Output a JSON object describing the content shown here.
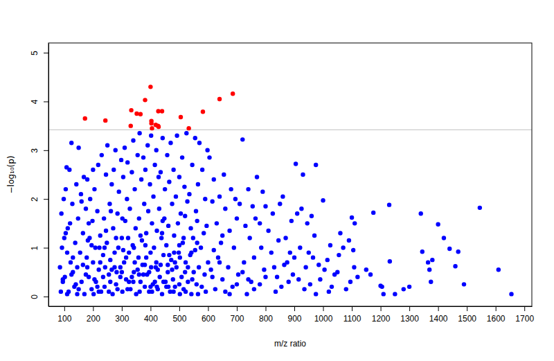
{
  "chart_data": {
    "type": "scatter",
    "x_label": "m/z ratio",
    "y_label": "−log₁₀(p)",
    "xlim": [
      45,
      1726
    ],
    "ylim": [
      -0.2,
      5.2
    ],
    "xticks": [
      100,
      200,
      300,
      400,
      500,
      600,
      700,
      800,
      900,
      1000,
      1100,
      1200,
      1300,
      1400,
      1500,
      1600,
      1700
    ],
    "yticks": [
      0,
      1,
      2,
      3,
      4,
      5
    ],
    "hline": 3.42,
    "series": [
      {
        "color": "#0000ff",
        "marker": "circle",
        "x": [
          85,
          90,
          95,
          100,
          105,
          110,
          115,
          120,
          125,
          130,
          88,
          92,
          98,
          102,
          108,
          112,
          118,
          122,
          128,
          135,
          138,
          142,
          145,
          148,
          150,
          155,
          158,
          160,
          165,
          168,
          170,
          175,
          178,
          180,
          185,
          188,
          190,
          195,
          198,
          200,
          205,
          208,
          210,
          215,
          218,
          220,
          225,
          228,
          230,
          235,
          238,
          240,
          245,
          248,
          250,
          255,
          258,
          260,
          265,
          268,
          270,
          272,
          275,
          278,
          280,
          285,
          288,
          290,
          295,
          298,
          300,
          302,
          305,
          308,
          310,
          312,
          315,
          318,
          320,
          325,
          328,
          330,
          335,
          338,
          340,
          342,
          345,
          348,
          350,
          355,
          358,
          360,
          362,
          365,
          368,
          370,
          372,
          375,
          378,
          380,
          382,
          385,
          388,
          390,
          392,
          395,
          398,
          400,
          402,
          405,
          408,
          410,
          412,
          415,
          418,
          420,
          422,
          425,
          428,
          430,
          432,
          435,
          438,
          440,
          442,
          445,
          448,
          450,
          452,
          455,
          458,
          460,
          462,
          465,
          468,
          470,
          472,
          475,
          478,
          480,
          482,
          485,
          488,
          490,
          492,
          495,
          498,
          500,
          502,
          505,
          508,
          510,
          512,
          515,
          518,
          520,
          522,
          525,
          528,
          530,
          535,
          538,
          540,
          542,
          545,
          548,
          550,
          555,
          558,
          560,
          562,
          565,
          568,
          570,
          575,
          578,
          580,
          585,
          588,
          590,
          592,
          595,
          598,
          600,
          565,
          555,
          545,
          530,
          515,
          500,
          95,
          110,
          130,
          150,
          175,
          195,
          215,
          235,
          255,
          275,
          295,
          315,
          335,
          355,
          375,
          395,
          415,
          435,
          455,
          475,
          105,
          125,
          145,
          165,
          185,
          205,
          225,
          245,
          265,
          285,
          305,
          325,
          345,
          365,
          385,
          405,
          425,
          445,
          465,
          485,
          182,
          202,
          222,
          242,
          262,
          282,
          302,
          322,
          342,
          362,
          382,
          402,
          422,
          442,
          462,
          482,
          502,
          522,
          542,
          562,
          140,
          160,
          180,
          200,
          220,
          240,
          260,
          280,
          300,
          320,
          340,
          360,
          380,
          400,
          420,
          440,
          460,
          480,
          500,
          520,
          605,
          610,
          615,
          620,
          625,
          630,
          635,
          640,
          645,
          650,
          655,
          660,
          670,
          675,
          680,
          685,
          690,
          695,
          700,
          705,
          710,
          720,
          725,
          730,
          735,
          740,
          745,
          750,
          755,
          760,
          765,
          770,
          780,
          785,
          790,
          795,
          800,
          810,
          820,
          825,
          835,
          840,
          845,
          850,
          860,
          865,
          870,
          880,
          890,
          895,
          900,
          905,
          910,
          920,
          925,
          930,
          935,
          940,
          945,
          950,
          960,
          970,
          975,
          975,
          985,
          990,
          1000,
          1015,
          1020,
          1030,
          1040,
          1050,
          1060,
          1070,
          1090,
          1095,
          1100,
          1105,
          1108,
          1110,
          1150,
          1165,
          1175,
          1200,
          1205,
          1210,
          1230,
          1232,
          1250,
          1280,
          1300,
          1340,
          1345,
          1365,
          1370,
          1375,
          1380,
          1400,
          1420,
          1440,
          1460,
          1470,
          1490,
          1545,
          1610,
          1655,
          615,
          640,
          660,
          700,
          620,
          650,
          675,
          720,
          740,
          760,
          780,
          800,
          830,
          855,
          875,
          885,
          915,
          955,
          965,
          1005,
          1025,
          1055,
          1080,
          1120
        ],
        "values": [
          0.6,
          1.7,
          0.3,
          1.2,
          2.2,
          0.9,
          0.1,
          1.5,
          3.15,
          0.5,
          0.1,
          1.0,
          2.0,
          0.4,
          2.65,
          1.4,
          2.6,
          0.7,
          1.9,
          0.2,
          1.1,
          2.3,
          0.6,
          1.6,
          3.05,
          0.9,
          2.1,
          0.3,
          1.3,
          2.45,
          0.05,
          1.8,
          0.8,
          2.4,
          0.4,
          1.2,
          2.0,
          0.15,
          1.55,
          0.7,
          2.2,
          1.0,
          0.3,
          1.75,
          2.7,
          0.55,
          1.25,
          0.1,
          2.9,
          0.85,
          1.6,
          0.2,
          2.5,
          1.1,
          3.1,
          0.45,
          1.9,
          0.75,
          2.3,
          0.05,
          1.4,
          2.6,
          0.6,
          3.0,
          0.25,
          1.7,
          1.0,
          2.15,
          0.4,
          2.8,
          1.2,
          0.1,
          2.45,
          0.7,
          3.05,
          1.55,
          0.35,
          2.0,
          2.75,
          0.9,
          1.8,
          0.15,
          2.55,
          1.05,
          3.2,
          0.5,
          2.2,
          1.4,
          0.05,
          2.9,
          0.8,
          1.6,
          3.35,
          0.3,
          2.4,
          1.15,
          0.65,
          2.85,
          1.9,
          0.2,
          2.6,
          1.3,
          0.45,
          3.1,
          1.75,
          0.1,
          2.3,
          0.9,
          3.3,
          1.5,
          0.25,
          2.05,
          1.0,
          2.7,
          0.6,
          3.0,
          1.35,
          0.15,
          2.45,
          1.8,
          0.4,
          2.55,
          1.2,
          0.05,
          3.25,
          0.85,
          1.6,
          2.2,
          0.3,
          1.05,
          2.9,
          0.5,
          1.45,
          2.35,
          0.1,
          3.15,
          0.75,
          1.9,
          0.35,
          2.6,
          1.25,
          0.2,
          2.05,
          0.6,
          3.3,
          1.5,
          0.9,
          2.45,
          0.05,
          1.7,
          0.4,
          2.85,
          1.1,
          0.15,
          2.25,
          1.65,
          0.7,
          3.35,
          1.95,
          0.3,
          2.1,
          0.85,
          1.4,
          0.05,
          2.7,
          1.2,
          0.5,
          3.25,
          1.75,
          0.25,
          1.55,
          2.3,
          0.6,
          3.15,
          1.0,
          0.2,
          2.6,
          1.3,
          0.45,
          2.0,
          0.1,
          1.45,
          3.0,
          0.7,
          0.05,
          0.95,
          0.35,
          0.6,
          1.2,
          0.25,
          0.35,
          0.05,
          0.8,
          0.15,
          0.45,
          1.05,
          0.2,
          0.4,
          0.1,
          0.9,
          0.6,
          0.8,
          0.4,
          0.55,
          0.45,
          0.5,
          0.3,
          0.65,
          0.2,
          0.55,
          1.3,
          0.45,
          0.05,
          0.65,
          1.5,
          0.35,
          0.7,
          1.35,
          0.55,
          0.15,
          0.95,
          0.3,
          0.7,
          1.25,
          0.8,
          0.1,
          0.55,
          0.3,
          0.85,
          0.7,
          1.15,
          0.05,
          1.0,
          0.6,
          1.75,
          0.5,
          1.6,
          1.2,
          1.0,
          0.1,
          1.05,
          0.6,
          0.2,
          1.55,
          0.2,
          0.9,
          0.8,
          0.1,
          0.9,
          1.1,
          0.25,
          1.95,
          0.6,
          2.6,
          0.1,
          1.0,
          0.3,
          1.2,
          0.5,
          0.15,
          0.3,
          0.45,
          0.65,
          0.2,
          0.7,
          1.3,
          0.65,
          0.1,
          1.05,
          0.5,
          2.85,
          0.55,
          1.95,
          2.4,
          0.15,
          1.5,
          0.8,
          2.05,
          1.1,
          0.35,
          2.5,
          1.8,
          0.6,
          1.35,
          2.2,
          0.2,
          1.0,
          2.0,
          1.6,
          0.45,
          1.9,
          3.22,
          0.7,
          1.45,
          0.05,
          2.2,
          1.2,
          0.3,
          1.85,
          0.8,
          1.6,
          2.45,
          0.25,
          1.0,
          2.15,
          0.55,
          1.85,
          1.35,
          0.9,
          1.7,
          0.1,
          0.4,
          1.15,
          1.9,
          2.05,
          0.65,
          1.2,
          0.3,
          1.55,
          0.45,
          0.8,
          2.72,
          1.7,
          1.0,
          1.8,
          2.5,
          0.15,
          0.6,
          1.5,
          0.9,
          1.65,
          1.25,
          2.7,
          0.05,
          0.65,
          0.35,
          1.97,
          0.75,
          0.1,
          0.2,
          0.45,
          0.5,
          1.3,
          1.0,
          1.15,
          0.3,
          1.62,
          0.95,
          0.6,
          1.5,
          0.55,
          0.45,
          1.72,
          0.22,
          0.2,
          0.05,
          1.88,
          0.72,
          0.05,
          0.15,
          0.2,
          1.7,
          0.92,
          0.7,
          0.55,
          0.3,
          0.75,
          1.48,
          1.2,
          0.98,
          0.62,
          0.92,
          0.25,
          1.82,
          0.55,
          0.05,
          0.4,
          0.7,
          0.1,
          0.25,
          0.95,
          1.25,
          0.05,
          0.5,
          0.35,
          0.15,
          1.5,
          0.4,
          0.6,
          0.2,
          0.7,
          0.9,
          0.35,
          0.25,
          0.8,
          0.55,
          1.05,
          0.85,
          0.15,
          0.4
        ]
      },
      {
        "color": "#ff0000",
        "marker": "circle",
        "x": [
          172,
          243,
          331,
          333,
          352,
          365,
          381,
          400,
          403,
          403,
          405,
          418,
          426,
          427,
          428,
          440,
          505,
          533,
          582,
          640,
          686
        ],
        "values": [
          3.65,
          3.61,
          3.5,
          3.82,
          3.75,
          3.74,
          4.03,
          4.3,
          3.6,
          3.55,
          3.45,
          3.52,
          3.5,
          3.8,
          3.48,
          3.8,
          3.68,
          3.45,
          3.79,
          4.05,
          4.16
        ]
      }
    ]
  }
}
